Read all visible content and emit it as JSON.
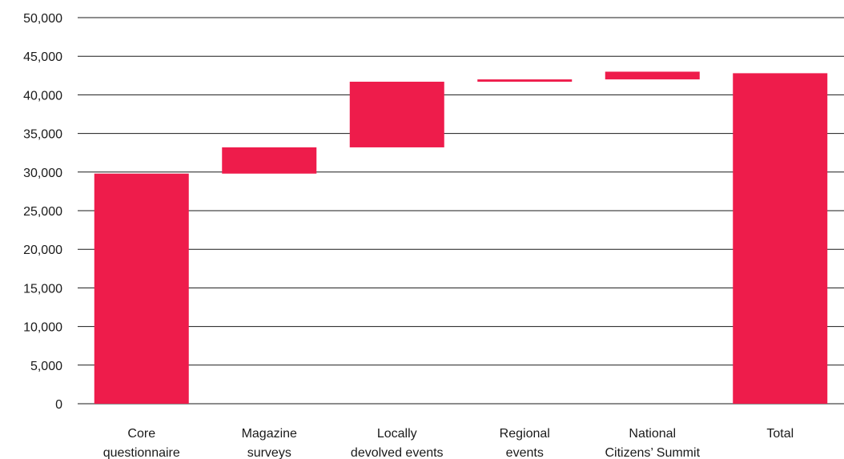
{
  "chart_data": {
    "type": "bar",
    "subtype": "waterfall",
    "categories": [
      [
        "Core",
        "questionnaire"
      ],
      [
        "Magazine",
        "surveys"
      ],
      [
        "Locally",
        "devolved events"
      ],
      [
        "Regional",
        "events"
      ],
      [
        "National",
        "Citizens’ Summit"
      ],
      [
        "Total"
      ]
    ],
    "values": [
      29800,
      3400,
      8500,
      300,
      1000,
      42800
    ],
    "bar_ranges": [
      [
        0,
        29800
      ],
      [
        29800,
        33200
      ],
      [
        33200,
        41700
      ],
      [
        41700,
        42000
      ],
      [
        42000,
        43000
      ],
      [
        0,
        42800
      ]
    ],
    "ylim": [
      0,
      50000
    ],
    "yticks": [
      "0",
      "5,000",
      "10,000",
      "15,000",
      "20,000",
      "25,000",
      "30,000",
      "35,000",
      "40,000",
      "45,000",
      "50,000"
    ],
    "grid": true,
    "bar_color": "#ee1c4b"
  }
}
